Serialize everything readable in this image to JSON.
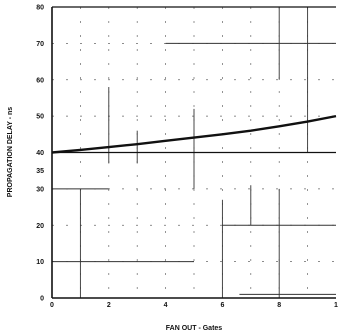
{
  "chart_data": {
    "type": "line",
    "title": "",
    "xlabel": "FAN OUT  - Gates",
    "ylabel": "PROPAGATION DELAY - ns",
    "xlim": [
      0,
      10
    ],
    "ylim": [
      0,
      80
    ],
    "x_ticks": [
      "0",
      "2",
      "4",
      "6",
      "8",
      "1"
    ],
    "y_ticks": [
      "0",
      "10",
      "20",
      "30",
      "35",
      "40",
      "50",
      "60",
      "70",
      "80"
    ],
    "grid": true,
    "series": [
      {
        "x": [
          0,
          1,
          2,
          3,
          4,
          5,
          6,
          7,
          8,
          9,
          10
        ],
        "y": [
          40.0,
          40.7,
          41.5,
          42.3,
          43.2,
          44.1,
          45.0,
          46.0,
          47.2,
          48.5,
          50.0
        ]
      }
    ],
    "colors": {
      "line": "#111111",
      "axis": "#111111",
      "grid": "#666666"
    }
  }
}
